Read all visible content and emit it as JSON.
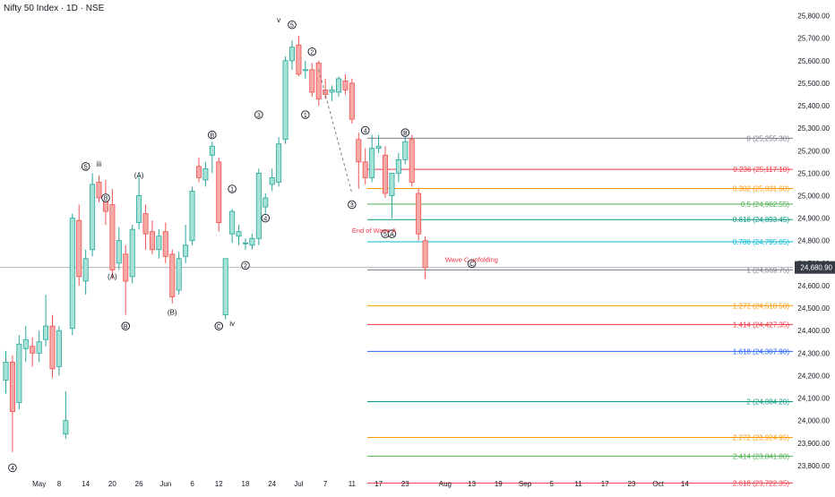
{
  "header": {
    "title": "Nifty 50 Index · 1D · NSE"
  },
  "chart_data": {
    "type": "candlestick",
    "title": "Nifty 50 Index · 1D · NSE",
    "ylim": [
      23700,
      25850
    ],
    "grid": false,
    "y_ticks": [
      {
        "v": 25800,
        "label": "25,800.00"
      },
      {
        "v": 25700,
        "label": "25,700.00"
      },
      {
        "v": 25600,
        "label": "25,600.00"
      },
      {
        "v": 25500,
        "label": "25,500.00"
      },
      {
        "v": 25400,
        "label": "25,400.00"
      },
      {
        "v": 25300,
        "label": "25,300.00"
      },
      {
        "v": 25200,
        "label": "25,200.00"
      },
      {
        "v": 25100,
        "label": "25,100.00"
      },
      {
        "v": 25000,
        "label": "25,000.00"
      },
      {
        "v": 24900,
        "label": "24,900.00"
      },
      {
        "v": 24800,
        "label": "24,800.00"
      },
      {
        "v": 24700,
        "label": "24,700.00"
      },
      {
        "v": 24600,
        "label": "24,600.00"
      },
      {
        "v": 24500,
        "label": "24,500.00"
      },
      {
        "v": 24400,
        "label": "24,400.00"
      },
      {
        "v": 24300,
        "label": "24,300.00"
      },
      {
        "v": 24200,
        "label": "24,200.00"
      },
      {
        "v": 24100,
        "label": "24,100.00"
      },
      {
        "v": 24000,
        "label": "24,000.00"
      },
      {
        "v": 23900,
        "label": "23,900.00"
      },
      {
        "v": 23800,
        "label": "23,800.00"
      }
    ],
    "x_ticks": [
      {
        "i": 5,
        "label": "May"
      },
      {
        "i": 8,
        "label": "8"
      },
      {
        "i": 12,
        "label": "14"
      },
      {
        "i": 16,
        "label": "20"
      },
      {
        "i": 20,
        "label": "26"
      },
      {
        "i": 24,
        "label": "Jun"
      },
      {
        "i": 28,
        "label": "6"
      },
      {
        "i": 32,
        "label": "12"
      },
      {
        "i": 36,
        "label": "18"
      },
      {
        "i": 40,
        "label": "24"
      },
      {
        "i": 44,
        "label": "Jul"
      },
      {
        "i": 48,
        "label": "7"
      },
      {
        "i": 52,
        "label": "11"
      },
      {
        "i": 56,
        "label": "17"
      },
      {
        "i": 60,
        "label": "23"
      },
      {
        "i": 66,
        "label": "Aug"
      },
      {
        "i": 70,
        "label": "13"
      },
      {
        "i": 74,
        "label": "19"
      },
      {
        "i": 78,
        "label": "Sep"
      },
      {
        "i": 82,
        "label": "5"
      },
      {
        "i": 86,
        "label": "11"
      },
      {
        "i": 90,
        "label": "17"
      },
      {
        "i": 94,
        "label": "23"
      },
      {
        "i": 98,
        "label": "Oct"
      },
      {
        "i": 102,
        "label": "14"
      }
    ],
    "candles": [
      {
        "o": 24180,
        "h": 24310,
        "l": 24120,
        "c": 24260
      },
      {
        "o": 24260,
        "h": 24290,
        "l": 23860,
        "c": 24040
      },
      {
        "o": 24080,
        "h": 24380,
        "l": 24050,
        "c": 24340
      },
      {
        "o": 24320,
        "h": 24420,
        "l": 24260,
        "c": 24360
      },
      {
        "o": 24330,
        "h": 24370,
        "l": 24240,
        "c": 24300
      },
      {
        "o": 24300,
        "h": 24400,
        "l": 24260,
        "c": 24350
      },
      {
        "o": 24360,
        "h": 24560,
        "l": 24330,
        "c": 24420
      },
      {
        "o": 24420,
        "h": 24470,
        "l": 24190,
        "c": 24230
      },
      {
        "o": 24240,
        "h": 24420,
        "l": 24200,
        "c": 24400
      },
      {
        "o": 23940,
        "h": 24130,
        "l": 23920,
        "c": 24000
      },
      {
        "o": 24410,
        "h": 24920,
        "l": 24380,
        "c": 24900
      },
      {
        "o": 24890,
        "h": 24960,
        "l": 24600,
        "c": 24640
      },
      {
        "o": 24620,
        "h": 24760,
        "l": 24560,
        "c": 24720
      },
      {
        "o": 24760,
        "h": 25100,
        "l": 24730,
        "c": 25050
      },
      {
        "o": 25060,
        "h": 25090,
        "l": 24970,
        "c": 24990
      },
      {
        "o": 24990,
        "h": 25070,
        "l": 24870,
        "c": 24930
      },
      {
        "o": 24960,
        "h": 25030,
        "l": 24630,
        "c": 24670
      },
      {
        "o": 24700,
        "h": 24860,
        "l": 24670,
        "c": 24800
      },
      {
        "o": 24740,
        "h": 24780,
        "l": 24470,
        "c": 24620
      },
      {
        "o": 24640,
        "h": 24870,
        "l": 24610,
        "c": 24850
      },
      {
        "o": 24880,
        "h": 25090,
        "l": 24850,
        "c": 25000
      },
      {
        "o": 24920,
        "h": 24960,
        "l": 24760,
        "c": 24830
      },
      {
        "o": 24840,
        "h": 24890,
        "l": 24740,
        "c": 24760
      },
      {
        "o": 24760,
        "h": 24850,
        "l": 24720,
        "c": 24820
      },
      {
        "o": 24840,
        "h": 24880,
        "l": 24700,
        "c": 24730
      },
      {
        "o": 24740,
        "h": 24760,
        "l": 24520,
        "c": 24550
      },
      {
        "o": 24580,
        "h": 24750,
        "l": 24560,
        "c": 24720
      },
      {
        "o": 24730,
        "h": 24870,
        "l": 24700,
        "c": 24780
      },
      {
        "o": 24800,
        "h": 25040,
        "l": 24780,
        "c": 25020
      },
      {
        "o": 25130,
        "h": 25170,
        "l": 25060,
        "c": 25080
      },
      {
        "o": 25070,
        "h": 25150,
        "l": 25040,
        "c": 25120
      },
      {
        "o": 25180,
        "h": 25240,
        "l": 25100,
        "c": 25220
      },
      {
        "o": 25150,
        "h": 25170,
        "l": 24840,
        "c": 24880
      },
      {
        "o": 24470,
        "h": 24720,
        "l": 24450,
        "c": 24720
      },
      {
        "o": 24830,
        "h": 24940,
        "l": 24790,
        "c": 24930
      },
      {
        "o": 24820,
        "h": 24870,
        "l": 24780,
        "c": 24840
      },
      {
        "o": 24790,
        "h": 24810,
        "l": 24760,
        "c": 24790
      },
      {
        "o": 24780,
        "h": 24830,
        "l": 24760,
        "c": 24810
      },
      {
        "o": 24810,
        "h": 25120,
        "l": 24780,
        "c": 25100
      },
      {
        "o": 24950,
        "h": 25010,
        "l": 24920,
        "c": 24990
      },
      {
        "o": 25050,
        "h": 25120,
        "l": 25020,
        "c": 25080
      },
      {
        "o": 25060,
        "h": 25260,
        "l": 25040,
        "c": 25230
      },
      {
        "o": 25250,
        "h": 25620,
        "l": 25230,
        "c": 25600
      },
      {
        "o": 25600,
        "h": 25690,
        "l": 25560,
        "c": 25660
      },
      {
        "o": 25670,
        "h": 25710,
        "l": 25530,
        "c": 25540
      },
      {
        "o": 25560,
        "h": 25600,
        "l": 25520,
        "c": 25560
      },
      {
        "o": 25560,
        "h": 25590,
        "l": 25440,
        "c": 25460
      },
      {
        "o": 25590,
        "h": 25600,
        "l": 25400,
        "c": 25430
      },
      {
        "o": 25470,
        "h": 25520,
        "l": 25430,
        "c": 25450
      },
      {
        "o": 25460,
        "h": 25490,
        "l": 25420,
        "c": 25470
      },
      {
        "o": 25460,
        "h": 25530,
        "l": 25440,
        "c": 25520
      },
      {
        "o": 25510,
        "h": 25540,
        "l": 25450,
        "c": 25470
      },
      {
        "o": 25500,
        "h": 25520,
        "l": 25320,
        "c": 25340
      },
      {
        "o": 25250,
        "h": 25280,
        "l": 25030,
        "c": 25150
      },
      {
        "o": 25150,
        "h": 25210,
        "l": 25050,
        "c": 25080
      },
      {
        "o": 25080,
        "h": 25270,
        "l": 25060,
        "c": 25210
      },
      {
        "o": 25210,
        "h": 25270,
        "l": 25190,
        "c": 25220
      },
      {
        "o": 25180,
        "h": 25220,
        "l": 24990,
        "c": 25010
      },
      {
        "o": 25000,
        "h": 25100,
        "l": 24900,
        "c": 25100
      },
      {
        "o": 25100,
        "h": 25190,
        "l": 25060,
        "c": 25160
      },
      {
        "o": 25160,
        "h": 25260,
        "l": 25140,
        "c": 25240
      },
      {
        "o": 25250,
        "h": 25270,
        "l": 25040,
        "c": 25060
      },
      {
        "o": 25010,
        "h": 25030,
        "l": 24800,
        "c": 24830
      },
      {
        "o": 24800,
        "h": 24820,
        "l": 24630,
        "c": 24680
      }
    ],
    "price_label": "24,680.90",
    "price_value": 24680.9,
    "fib_levels": [
      {
        "ratio": "0",
        "value": 25255.3,
        "label": "0 (25,255.30)",
        "color": "#787b86"
      },
      {
        "ratio": "0.236",
        "value": 25117.1,
        "label": "0.236 (25,117.10)",
        "color": "#f23645"
      },
      {
        "ratio": "0.382",
        "value": 25031.6,
        "label": "0.382 (25,031.60)",
        "color": "#ff9800"
      },
      {
        "ratio": "0.5",
        "value": 24962.55,
        "label": "0.5 (24,962.55)",
        "color": "#4caf50"
      },
      {
        "ratio": "0.618",
        "value": 24893.45,
        "label": "0.618 (24,893.45)",
        "color": "#089981"
      },
      {
        "ratio": "0.786",
        "value": 24795.05,
        "label": "0.786 (24,795.05)",
        "color": "#00bcd4"
      },
      {
        "ratio": "1",
        "value": 24669.75,
        "label": "1 (24,669.75)",
        "color": "#787b86"
      },
      {
        "ratio": "1.272",
        "value": 24510.5,
        "label": "1.272 (24,510.50)",
        "color": "#ff9800"
      },
      {
        "ratio": "1.414",
        "value": 24427.35,
        "label": "1.414 (24,427.35)",
        "color": "#f23645"
      },
      {
        "ratio": "1.618",
        "value": 24307.9,
        "label": "1.618 (24,307.90)",
        "color": "#2962ff"
      },
      {
        "ratio": "2",
        "value": 24084.2,
        "label": "2 (24,084.20)",
        "color": "#089981"
      },
      {
        "ratio": "2.272",
        "value": 23924.95,
        "label": "2.272 (23,924.95)",
        "color": "#ff9800"
      },
      {
        "ratio": "2.414",
        "value": 23841.8,
        "label": "2.414 (23,841.80)",
        "color": "#4caf50"
      },
      {
        "ratio": "2.618",
        "value": 23722.35,
        "label": "2.618 (23,722.35)",
        "color": "#f23645"
      }
    ],
    "annotations": {
      "waves_circled": [
        {
          "t": "4",
          "i": 1,
          "v": 23790
        },
        {
          "t": "5",
          "i": 12,
          "v": 25130
        },
        {
          "t": "B",
          "i": 15,
          "v": 24990
        },
        {
          "t": "B",
          "i": 18,
          "v": 24420
        },
        {
          "t": "B",
          "i": 31,
          "v": 25270
        },
        {
          "t": "1",
          "i": 34,
          "v": 25030
        },
        {
          "t": "2",
          "i": 36,
          "v": 24690
        },
        {
          "t": "C",
          "i": 32,
          "v": 24420
        },
        {
          "t": "3",
          "i": 38,
          "v": 25360
        },
        {
          "t": "4",
          "i": 39,
          "v": 24900
        },
        {
          "t": "5",
          "i": 43,
          "v": 25760
        },
        {
          "t": "2",
          "i": 46,
          "v": 25640
        },
        {
          "t": "1",
          "i": 45,
          "v": 25360
        },
        {
          "t": "3",
          "i": 52,
          "v": 24960
        },
        {
          "t": "4",
          "i": 54,
          "v": 25290
        },
        {
          "t": "5",
          "i": 57,
          "v": 24830
        },
        {
          "t": "A",
          "i": 58,
          "v": 24830
        },
        {
          "t": "B",
          "i": 60,
          "v": 25280
        },
        {
          "t": "C",
          "i": 70,
          "v": 24698
        }
      ],
      "texts": [
        {
          "t": "iii",
          "i": 14,
          "v": 25130,
          "color": "#131722"
        },
        {
          "t": "(A)",
          "i": 20,
          "v": 25080,
          "color": "#131722"
        },
        {
          "t": "(A)",
          "i": 16,
          "v": 24630,
          "color": "#131722"
        },
        {
          "t": "(B)",
          "i": 25,
          "v": 24470,
          "color": "#131722"
        },
        {
          "t": "iv",
          "i": 34,
          "v": 24420,
          "color": "#131722"
        },
        {
          "t": "v",
          "i": 41,
          "v": 25770,
          "color": "#131722"
        },
        {
          "t": "End of Wave A",
          "i": 52,
          "v": 24835,
          "color": "#f23645"
        },
        {
          "t": "Wave C unfolding",
          "i": 66,
          "v": 24705,
          "color": "#f23645"
        }
      ]
    }
  },
  "colors": {
    "up": "#26a69a",
    "down": "#ef5350",
    "up_fill": "#a7e2d7",
    "down_fill": "#f7a9a7",
    "axis_text": "#131722",
    "price_tag_bg": "#363a45",
    "price_line": "#b2b5be"
  }
}
